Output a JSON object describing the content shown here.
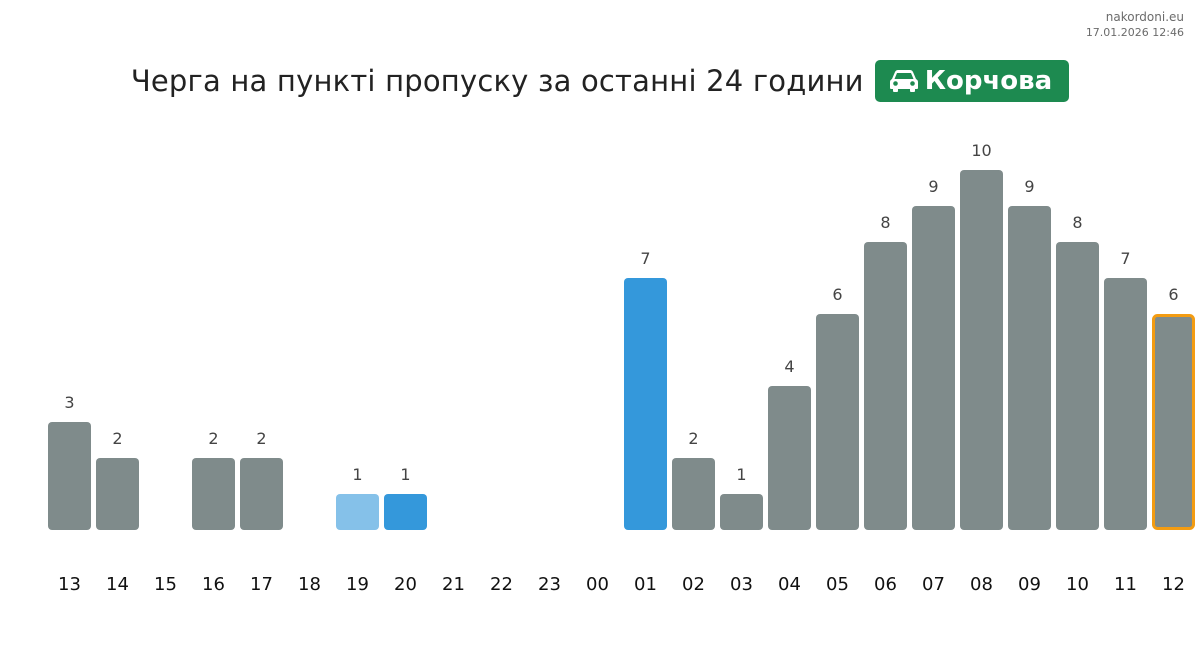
{
  "watermark": {
    "site": "nakordoni.eu",
    "datetime": "17.01.2026 12:46"
  },
  "header": {
    "title": "Черга на пункті пропуску за останні 24 години",
    "checkpoint": "Корчова",
    "checkpoint_icon": "car-icon"
  },
  "colors": {
    "bar_default": "#7f8b8b",
    "bar_highlight": "#3498db",
    "bar_light": "#85c1e9",
    "current_outline": "#f39c12",
    "badge": "#1d8a50"
  },
  "chart_data": {
    "type": "bar",
    "title": "",
    "xlabel": "",
    "ylabel": "",
    "categories": [
      "13",
      "14",
      "15",
      "16",
      "17",
      "18",
      "19",
      "20",
      "21",
      "22",
      "23",
      "00",
      "01",
      "02",
      "03",
      "04",
      "05",
      "06",
      "07",
      "08",
      "09",
      "10",
      "11",
      "12"
    ],
    "values": [
      3,
      2,
      0,
      2,
      2,
      0,
      1,
      1,
      0,
      0,
      0,
      0,
      7,
      2,
      1,
      4,
      6,
      8,
      9,
      10,
      9,
      8,
      7,
      6
    ],
    "bar_styles": [
      "default",
      "default",
      "default",
      "default",
      "default",
      "default",
      "light",
      "highlight",
      "default",
      "default",
      "default",
      "default",
      "highlight",
      "default",
      "default",
      "default",
      "default",
      "default",
      "default",
      "default",
      "default",
      "default",
      "default",
      "current"
    ],
    "ylim": [
      0,
      10
    ],
    "grid": false,
    "legend": "none"
  }
}
